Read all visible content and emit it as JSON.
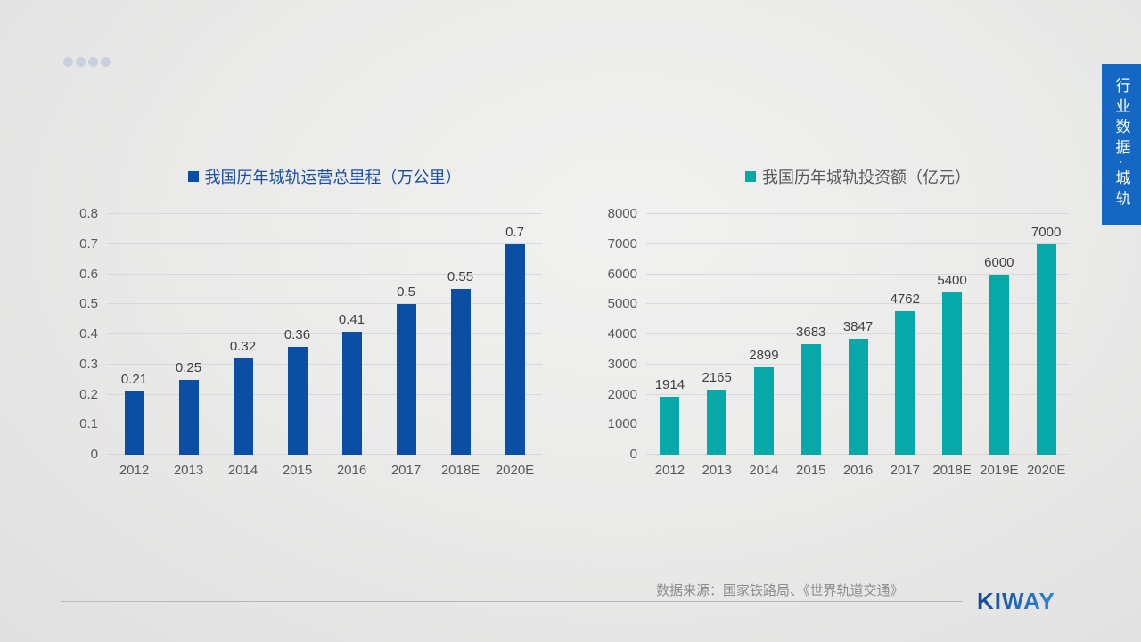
{
  "slide": {
    "side_tab": {
      "text": "行业数据·城轨",
      "bg_color": "#1467c2"
    },
    "progress_dots_count": 4,
    "footer": {
      "source_text": "数据来源：国家铁路局、《世界轨道交通》",
      "logo_text": "KIWAY"
    }
  },
  "chart_data": [
    {
      "type": "bar",
      "title": "我国历年城轨运营总里程（万公里）",
      "title_color": "#1a4fa3",
      "bar_color": "#0b4fa5",
      "categories": [
        "2012",
        "2013",
        "2014",
        "2015",
        "2016",
        "2017",
        "2018E",
        "2020E"
      ],
      "values": [
        0.21,
        0.25,
        0.32,
        0.36,
        0.41,
        0.5,
        0.55,
        0.7
      ],
      "labels": [
        "0.21",
        "0.25",
        "0.32",
        "0.36",
        "0.41",
        "0.5",
        "0.55",
        "0.7"
      ],
      "xlabel": "",
      "ylabel": "",
      "ylim": [
        0,
        0.8
      ],
      "yticks": [
        "0",
        "0.1",
        "0.2",
        "0.3",
        "0.4",
        "0.5",
        "0.6",
        "0.7",
        "0.8"
      ],
      "grid": true,
      "legend_position": "top"
    },
    {
      "type": "bar",
      "title": "我国历年城轨投资额（亿元）",
      "title_color": "#595959",
      "bar_color": "#06a8a8",
      "categories": [
        "2012",
        "2013",
        "2014",
        "2015",
        "2016",
        "2017",
        "2018E",
        "2019E",
        "2020E"
      ],
      "values": [
        1914,
        2165,
        2899,
        3683,
        3847,
        4762,
        5400,
        6000,
        7000
      ],
      "labels": [
        "1914",
        "2165",
        "2899",
        "3683",
        "3847",
        "4762",
        "5400",
        "6000",
        "7000"
      ],
      "xlabel": "",
      "ylabel": "",
      "ylim": [
        0,
        8000
      ],
      "yticks": [
        "0",
        "1000",
        "2000",
        "3000",
        "4000",
        "5000",
        "6000",
        "7000",
        "8000"
      ],
      "grid": true,
      "legend_position": "top"
    }
  ]
}
